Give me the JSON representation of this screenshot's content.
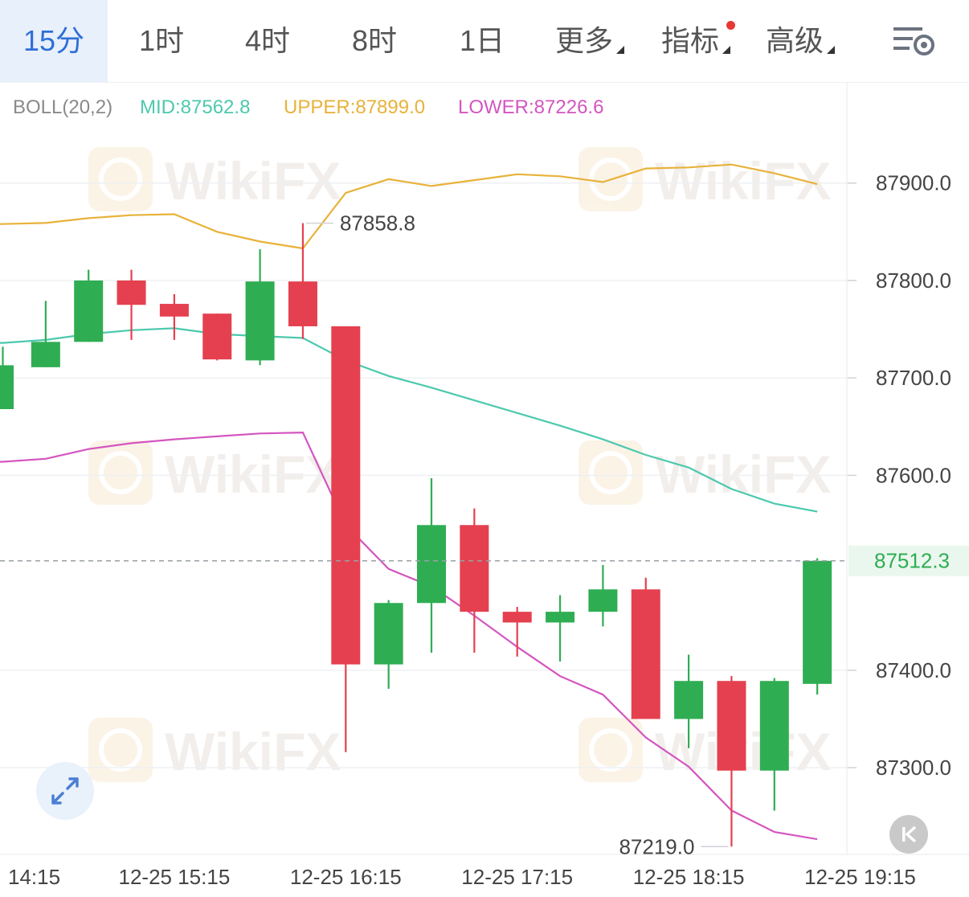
{
  "tabs": [
    {
      "label": "15分",
      "active": true
    },
    {
      "label": "1时"
    },
    {
      "label": "4时"
    },
    {
      "label": "8时"
    },
    {
      "label": "1日"
    },
    {
      "label": "更多",
      "caret": true
    },
    {
      "label": "指标",
      "caret": true,
      "dot": true
    },
    {
      "label": "高级",
      "caret": true
    }
  ],
  "settings_icon": "chart-settings-icon",
  "indicator": {
    "name": "BOLL(20,2)",
    "mid_label": "MID:87562.8",
    "upper_label": "UPPER:87899.0",
    "lower_label": "LOWER:87226.6"
  },
  "colors": {
    "up": "#2fad52",
    "down": "#e5404f",
    "mid": "#4cc9ad",
    "upper": "#e8b23a",
    "lower": "#d455c0",
    "price_line": "#9aa0a6",
    "price_text": "#2fad52",
    "active_tab": "#2f6fd6"
  },
  "watermark": "WikiFX",
  "chart_data": {
    "type": "candlestick",
    "y_ticks": [
      "87900.0",
      "87800.0",
      "87700.0",
      "87600.0",
      "87400.0",
      "87300.0"
    ],
    "ylim": [
      87211.0,
      87993.0
    ],
    "x_labels": [
      "14:15",
      "12-25 15:15",
      "12-25 16:15",
      "12-25 17:15",
      "12-25 18:15",
      "12-25 19:15"
    ],
    "candles": [
      {
        "o": 87668,
        "h": 87732,
        "l": 87668,
        "c": 87713
      },
      {
        "o": 87711,
        "h": 87779,
        "l": 87711,
        "c": 87737
      },
      {
        "o": 87737,
        "h": 87811,
        "l": 87737,
        "c": 87800
      },
      {
        "o": 87800,
        "h": 87811,
        "l": 87739,
        "c": 87775
      },
      {
        "o": 87776,
        "h": 87786,
        "l": 87739,
        "c": 87763
      },
      {
        "o": 87766,
        "h": 87766,
        "l": 87718,
        "c": 87719
      },
      {
        "o": 87718,
        "h": 87832,
        "l": 87713,
        "c": 87799
      },
      {
        "o": 87799,
        "h": 87858.8,
        "l": 87740,
        "c": 87753
      },
      {
        "o": 87753,
        "h": 87753,
        "l": 87316,
        "c": 87406
      },
      {
        "o": 87406,
        "h": 87472,
        "l": 87381,
        "c": 87469
      },
      {
        "o": 87469,
        "h": 87597,
        "l": 87418,
        "c": 87549
      },
      {
        "o": 87549,
        "h": 87566,
        "l": 87418,
        "c": 87460
      },
      {
        "o": 87460,
        "h": 87465,
        "l": 87414,
        "c": 87449
      },
      {
        "o": 87449,
        "h": 87477,
        "l": 87409,
        "c": 87460
      },
      {
        "o": 87460,
        "h": 87508,
        "l": 87445,
        "c": 87483
      },
      {
        "o": 87483,
        "h": 87495,
        "l": 87350,
        "c": 87350
      },
      {
        "o": 87350,
        "h": 87416,
        "l": 87320,
        "c": 87389
      },
      {
        "o": 87389,
        "h": 87394,
        "l": 87219,
        "c": 87297
      },
      {
        "o": 87297,
        "h": 87392,
        "l": 87256,
        "c": 87389
      },
      {
        "o": 87386,
        "h": 87515,
        "l": 87375,
        "c": 87512.3
      }
    ],
    "series": [
      {
        "name": "UPPER",
        "values": [
          87858,
          87859,
          87864,
          87867,
          87868,
          87850,
          87840,
          87833,
          87890,
          87904,
          87897,
          87903,
          87909,
          87907,
          87901,
          87915,
          87916,
          87919,
          87910,
          87899
        ]
      },
      {
        "name": "MID",
        "values": [
          87736,
          87739,
          87745,
          87749,
          87751,
          87745,
          87743,
          87741,
          87718,
          87702,
          87690,
          87677,
          87664,
          87651,
          87637,
          87621,
          87608,
          87586,
          87571,
          87562.8
        ]
      },
      {
        "name": "LOWER",
        "values": [
          87614,
          87617,
          87627,
          87633,
          87637,
          87640,
          87643,
          87644,
          87549,
          87504,
          87486,
          87456,
          87424,
          87394,
          87375,
          87331,
          87301,
          87256,
          87234,
          87226.6
        ]
      }
    ],
    "high_marker": "87858.8",
    "low_marker": "87219.0",
    "current_price": "87512.3"
  }
}
